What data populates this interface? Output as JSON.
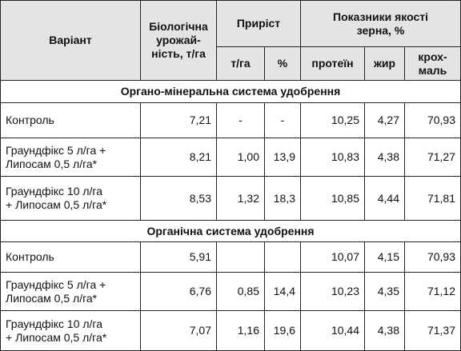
{
  "header": {
    "variant": "Варіант",
    "yield": [
      "Біологічна",
      "урожай-",
      "ність, т/га"
    ],
    "increase": "Приріст",
    "increase_t": "т/га",
    "increase_pct": "%",
    "quality": [
      "Показники якості",
      "зерна, %"
    ],
    "protein": "протеїн",
    "fat": "жир",
    "starch": [
      "крох-",
      "маль"
    ]
  },
  "sections": [
    {
      "title": "Органо-мінеральна система удобрення",
      "rows": [
        {
          "label": [
            "Контроль"
          ],
          "cells": [
            "7,21",
            "-",
            "-",
            "10,25",
            "4,27",
            "70,93"
          ]
        },
        {
          "label": [
            "Граундфікс 5 л/га +",
            "Липосам 0,5 л/га*"
          ],
          "cells": [
            "8,21",
            "1,00",
            "13,9",
            "10,83",
            "4,38",
            "71,27"
          ]
        },
        {
          "label": [
            "Граундфікс 10 л/га",
            "+ Липосам 0,5 л/га*"
          ],
          "cells": [
            "8,53",
            "1,32",
            "18,3",
            "10,85",
            "4,44",
            "71,81"
          ]
        }
      ]
    },
    {
      "title": "Органічна система удобрення",
      "rows": [
        {
          "label": [
            "Контроль"
          ],
          "cells": [
            "5,91",
            null,
            null,
            "10,07",
            "4,15",
            "70,93"
          ]
        },
        {
          "label": [
            "Граундфікс 5 л/га +",
            "Липосам 0,5 л/га*"
          ],
          "cells": [
            "6,76",
            "0,85",
            "14,4",
            "10,23",
            "4,35",
            "71,12"
          ]
        },
        {
          "label": [
            "Граундфікс 10 л/га",
            "+ Липосам 0,5 л/га*"
          ],
          "cells": [
            "7,07",
            "1,16",
            "19,6",
            "10,44",
            "4,38",
            "71,37"
          ]
        }
      ]
    }
  ]
}
